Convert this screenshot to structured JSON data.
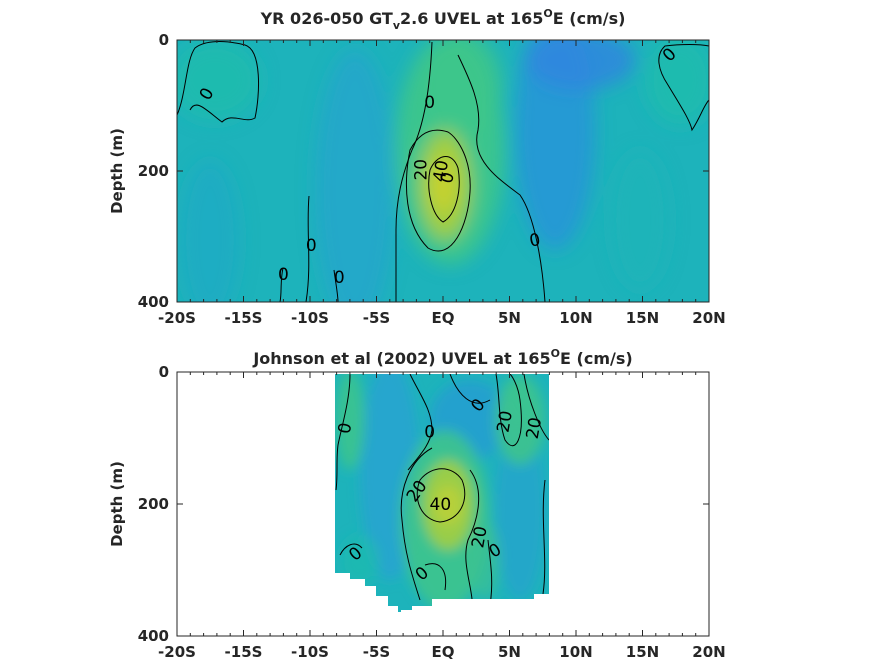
{
  "figure": {
    "palette": {
      "field_base": "#1db3bb",
      "cyan": "#14b9c1",
      "teal": "#1fbbae",
      "blue": "#2a92dc",
      "green": "#3fc68a",
      "yellow_green": "#a6cf3c",
      "contour": "#000000",
      "axis": "#262626"
    }
  },
  "chart_data": [
    {
      "type": "heatmap",
      "title_prefix": "YR 026-050 GT",
      "title_subscript": "v",
      "title_middle": "2.6 UVEL at 165",
      "title_superscript": "O",
      "title_suffix": "E (cm/s)",
      "ylabel": "Depth (m)",
      "xlim": [
        -20,
        20
      ],
      "ylim": [
        400,
        0
      ],
      "x_ticks": [
        -20,
        -15,
        -10,
        -5,
        0,
        5,
        10,
        15,
        20
      ],
      "x_tick_labels": [
        "-20S",
        "-15S",
        "-10S",
        "-5S",
        "EQ",
        "5N",
        "10N",
        "15N",
        "20N"
      ],
      "y_ticks": [
        0,
        200,
        400
      ],
      "y_tick_labels": [
        "0",
        "200",
        "400"
      ],
      "data_extent": {
        "lat": [
          -20,
          20
        ],
        "depth": [
          0,
          395
        ]
      },
      "contour_labels": [
        {
          "text": "0",
          "lat": -17.8,
          "depth": 82,
          "angle": -60
        },
        {
          "text": "0",
          "lat": 17,
          "depth": 22,
          "angle": -45
        },
        {
          "text": "0",
          "lat": -1.0,
          "depth": 95,
          "angle": 0
        },
        {
          "text": "20",
          "lat": -1.7,
          "depth": 198,
          "angle": -90
        },
        {
          "text": "40",
          "lat": -0.2,
          "depth": 200,
          "angle": -80
        },
        {
          "text": "0",
          "lat": 0.3,
          "depth": 210,
          "angle": -75
        },
        {
          "text": "0",
          "lat": 6.9,
          "depth": 305,
          "angle": -10
        },
        {
          "text": "0",
          "lat": -9.9,
          "depth": 313,
          "angle": 0
        },
        {
          "text": "0",
          "lat": -12.0,
          "depth": 357,
          "angle": 0
        },
        {
          "text": "0",
          "lat": -7.8,
          "depth": 362,
          "angle": 0
        }
      ]
    },
    {
      "type": "heatmap",
      "title_prefix": "Johnson et al (2002) UVEL at 165",
      "title_subscript": "",
      "title_middle": "",
      "title_superscript": "O",
      "title_suffix": "E (cm/s)",
      "ylabel": "Depth (m)",
      "xlim": [
        -20,
        20
      ],
      "ylim": [
        400,
        0
      ],
      "x_ticks": [
        -20,
        -15,
        -10,
        -5,
        0,
        5,
        10,
        15,
        20
      ],
      "x_tick_labels": [
        "-20S",
        "-15S",
        "-10S",
        "-5S",
        "EQ",
        "5N",
        "10N",
        "15N",
        "20N"
      ],
      "y_ticks": [
        0,
        200,
        400
      ],
      "y_tick_labels": [
        "0",
        "200",
        "400"
      ],
      "data_extent": {
        "lat": [
          -8,
          8
        ],
        "depth": [
          0,
          355
        ]
      },
      "contour_labels": [
        {
          "text": "0",
          "lat": -7.4,
          "depth": 85,
          "angle": -80
        },
        {
          "text": "0",
          "lat": -1.0,
          "depth": 90,
          "angle": 0
        },
        {
          "text": "0",
          "lat": 2.6,
          "depth": 50,
          "angle": -50
        },
        {
          "text": "20",
          "lat": 4.6,
          "depth": 75,
          "angle": -80
        },
        {
          "text": "20",
          "lat": 6.8,
          "depth": 85,
          "angle": -80
        },
        {
          "text": "20",
          "lat": -2.0,
          "depth": 180,
          "angle": -55
        },
        {
          "text": "40",
          "lat": -0.2,
          "depth": 200,
          "angle": 0
        },
        {
          "text": "20",
          "lat": 2.7,
          "depth": 250,
          "angle": -80
        },
        {
          "text": "0",
          "lat": 3.9,
          "depth": 270,
          "angle": -30
        },
        {
          "text": "0",
          "lat": -6.6,
          "depth": 275,
          "angle": -40
        },
        {
          "text": "0",
          "lat": -1.6,
          "depth": 305,
          "angle": -40
        }
      ]
    }
  ]
}
